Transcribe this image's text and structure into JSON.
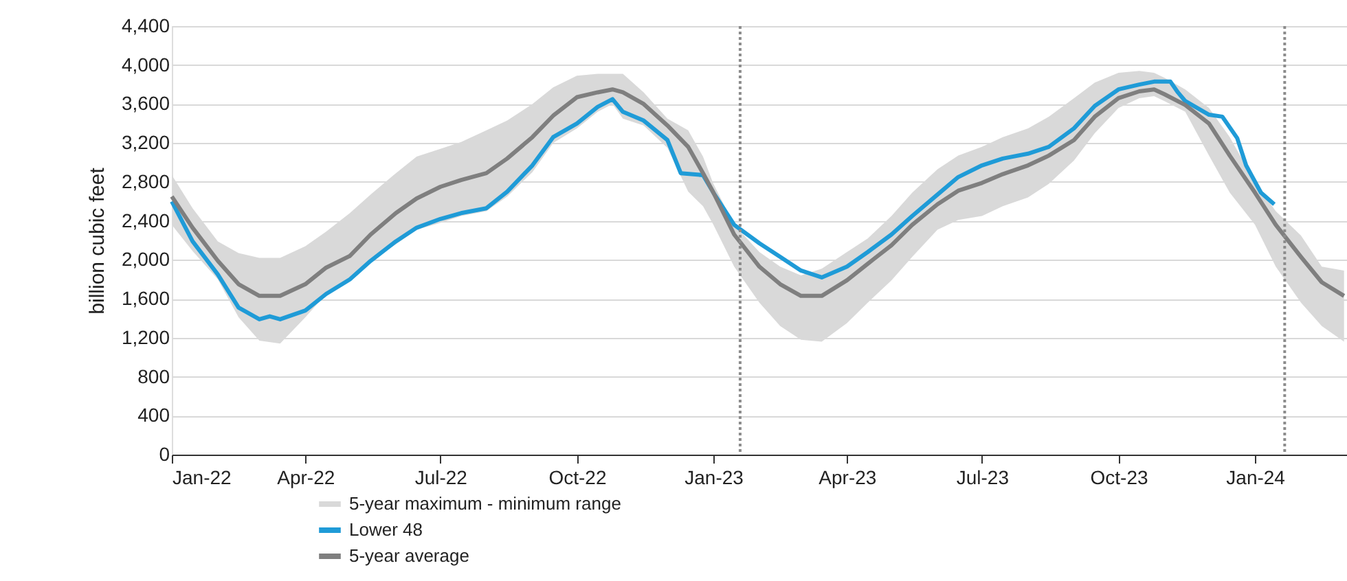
{
  "chart_data": {
    "type": "line",
    "ylabel": "billion cubic feet",
    "xlim": [
      "2022-01-01",
      "2024-03-03"
    ],
    "xticks": [
      {
        "value": "2022-01-01",
        "label": "Jan-22"
      },
      {
        "value": "2022-04-01",
        "label": "Apr-22"
      },
      {
        "value": "2022-07-01",
        "label": "Jul-22"
      },
      {
        "value": "2022-10-01",
        "label": "Oct-22"
      },
      {
        "value": "2023-01-01",
        "label": "Jan-23"
      },
      {
        "value": "2023-04-01",
        "label": "Apr-23"
      },
      {
        "value": "2023-07-01",
        "label": "Jul-23"
      },
      {
        "value": "2023-10-01",
        "label": "Oct-23"
      },
      {
        "value": "2024-01-01",
        "label": "Jan-24"
      }
    ],
    "ylim": [
      0,
      4400
    ],
    "yticks": [
      {
        "value": 0,
        "label": "0"
      },
      {
        "value": 400,
        "label": "400"
      },
      {
        "value": 800,
        "label": "800"
      },
      {
        "value": 1200,
        "label": "1,200"
      },
      {
        "value": 1600,
        "label": "1,600"
      },
      {
        "value": 2000,
        "label": "2,000"
      },
      {
        "value": 2400,
        "label": "2,400"
      },
      {
        "value": 2800,
        "label": "2,800"
      },
      {
        "value": 3200,
        "label": "3,200"
      },
      {
        "value": 3600,
        "label": "3,600"
      },
      {
        "value": 4000,
        "label": "4,000"
      },
      {
        "value": 4400,
        "label": "4,400"
      }
    ],
    "grid": "y",
    "legend": "bottom",
    "ref_lines": [
      {
        "axis": "x",
        "value": "2023-01-19",
        "color": "#8c8c8c",
        "line_style": "dotted"
      },
      {
        "axis": "x",
        "value": "2024-01-21",
        "color": "#8c8c8c",
        "line_style": "dotted"
      }
    ],
    "series": [
      {
        "name": "5-year maximum - minimum range",
        "type": "area",
        "color": "#d9d9d9"
      },
      {
        "name": "Lower 48",
        "type": "line",
        "color": "#1f9bd7",
        "x": [
          "2022-01-01",
          "2022-01-15",
          "2022-02-01",
          "2022-02-15",
          "2022-03-01",
          "2022-03-08",
          "2022-03-15",
          "2022-04-01",
          "2022-04-15",
          "2022-05-01",
          "2022-05-15",
          "2022-06-01",
          "2022-06-15",
          "2022-07-01",
          "2022-07-15",
          "2022-08-01",
          "2022-08-15",
          "2022-09-01",
          "2022-09-15",
          "2022-10-01",
          "2022-10-15",
          "2022-10-25",
          "2022-11-01",
          "2022-11-15",
          "2022-12-01",
          "2022-12-10",
          "2022-12-25",
          "2023-01-01",
          "2023-01-15",
          "2023-02-01",
          "2023-02-15",
          "2023-03-01",
          "2023-03-15",
          "2023-04-01",
          "2023-04-15",
          "2023-05-01",
          "2023-05-15",
          "2023-06-01",
          "2023-06-15",
          "2023-07-01",
          "2023-07-15",
          "2023-08-01",
          "2023-08-15",
          "2023-09-01",
          "2023-09-15",
          "2023-10-01",
          "2023-10-15",
          "2023-10-25",
          "2023-11-05",
          "2023-11-10",
          "2023-11-15",
          "2023-12-01",
          "2023-12-10",
          "2023-12-20",
          "2023-12-26",
          "2024-01-05",
          "2024-01-14"
        ],
        "values": [
          2600,
          2190,
          1850,
          1510,
          1390,
          1420,
          1390,
          1480,
          1650,
          1800,
          1990,
          2190,
          2330,
          2420,
          2480,
          2530,
          2700,
          2970,
          3260,
          3400,
          3570,
          3650,
          3520,
          3430,
          3230,
          2890,
          2870,
          2690,
          2360,
          2170,
          2030,
          1890,
          1820,
          1930,
          2080,
          2260,
          2450,
          2670,
          2850,
          2970,
          3040,
          3090,
          3160,
          3350,
          3580,
          3750,
          3800,
          3830,
          3830,
          3720,
          3630,
          3490,
          3470,
          3250,
          2970,
          2690,
          2570
        ]
      },
      {
        "name": "5-year average",
        "type": "line",
        "color": "#7f7f7f",
        "x": [
          "2022-01-01",
          "2022-01-15",
          "2022-02-01",
          "2022-02-15",
          "2022-03-01",
          "2022-03-15",
          "2022-04-01",
          "2022-04-15",
          "2022-05-01",
          "2022-05-15",
          "2022-06-01",
          "2022-06-15",
          "2022-07-01",
          "2022-07-15",
          "2022-08-01",
          "2022-08-15",
          "2022-09-01",
          "2022-09-15",
          "2022-10-01",
          "2022-10-15",
          "2022-10-25",
          "2022-11-01",
          "2022-11-15",
          "2022-12-01",
          "2022-12-15",
          "2022-12-25",
          "2023-01-01",
          "2023-01-15",
          "2023-02-01",
          "2023-02-15",
          "2023-03-01",
          "2023-03-15",
          "2023-04-01",
          "2023-04-15",
          "2023-05-01",
          "2023-05-15",
          "2023-06-01",
          "2023-06-15",
          "2023-07-01",
          "2023-07-15",
          "2023-08-01",
          "2023-08-15",
          "2023-09-01",
          "2023-09-15",
          "2023-10-01",
          "2023-10-15",
          "2023-10-25",
          "2023-11-01",
          "2023-11-15",
          "2023-12-01",
          "2023-12-15",
          "2024-01-01",
          "2024-01-15",
          "2024-02-01",
          "2024-02-15",
          "2024-03-01"
        ],
        "values": [
          2650,
          2330,
          1990,
          1750,
          1630,
          1630,
          1750,
          1920,
          2040,
          2260,
          2480,
          2630,
          2750,
          2820,
          2890,
          3040,
          3260,
          3480,
          3670,
          3720,
          3750,
          3720,
          3600,
          3380,
          3160,
          2890,
          2690,
          2260,
          1930,
          1750,
          1630,
          1630,
          1790,
          1960,
          2150,
          2360,
          2570,
          2710,
          2790,
          2880,
          2970,
          3070,
          3230,
          3470,
          3660,
          3730,
          3750,
          3700,
          3590,
          3400,
          3070,
          2690,
          2360,
          2030,
          1770,
          1630
        ],
        "upper": [
          2870,
          2530,
          2190,
          2070,
          2020,
          2020,
          2140,
          2290,
          2480,
          2670,
          2890,
          3060,
          3140,
          3210,
          3330,
          3430,
          3600,
          3770,
          3890,
          3910,
          3910,
          3910,
          3720,
          3450,
          3330,
          3060,
          2780,
          2360,
          2080,
          1930,
          1840,
          1910,
          2080,
          2220,
          2450,
          2690,
          2930,
          3070,
          3160,
          3260,
          3350,
          3470,
          3660,
          3820,
          3920,
          3940,
          3920,
          3870,
          3750,
          3560,
          3260,
          2800,
          2500,
          2250,
          1930,
          1890
        ],
        "lower": [
          2360,
          2090,
          1800,
          1410,
          1170,
          1140,
          1410,
          1650,
          1800,
          1990,
          2160,
          2310,
          2380,
          2450,
          2500,
          2650,
          2900,
          3200,
          3350,
          3520,
          3600,
          3450,
          3380,
          3150,
          2700,
          2550,
          2360,
          1930,
          1560,
          1320,
          1180,
          1160,
          1350,
          1560,
          1790,
          2030,
          2310,
          2410,
          2450,
          2550,
          2640,
          2780,
          3020,
          3300,
          3560,
          3660,
          3680,
          3630,
          3520,
          3070,
          2690,
          2360,
          1930,
          1560,
          1320,
          1160
        ]
      }
    ]
  }
}
